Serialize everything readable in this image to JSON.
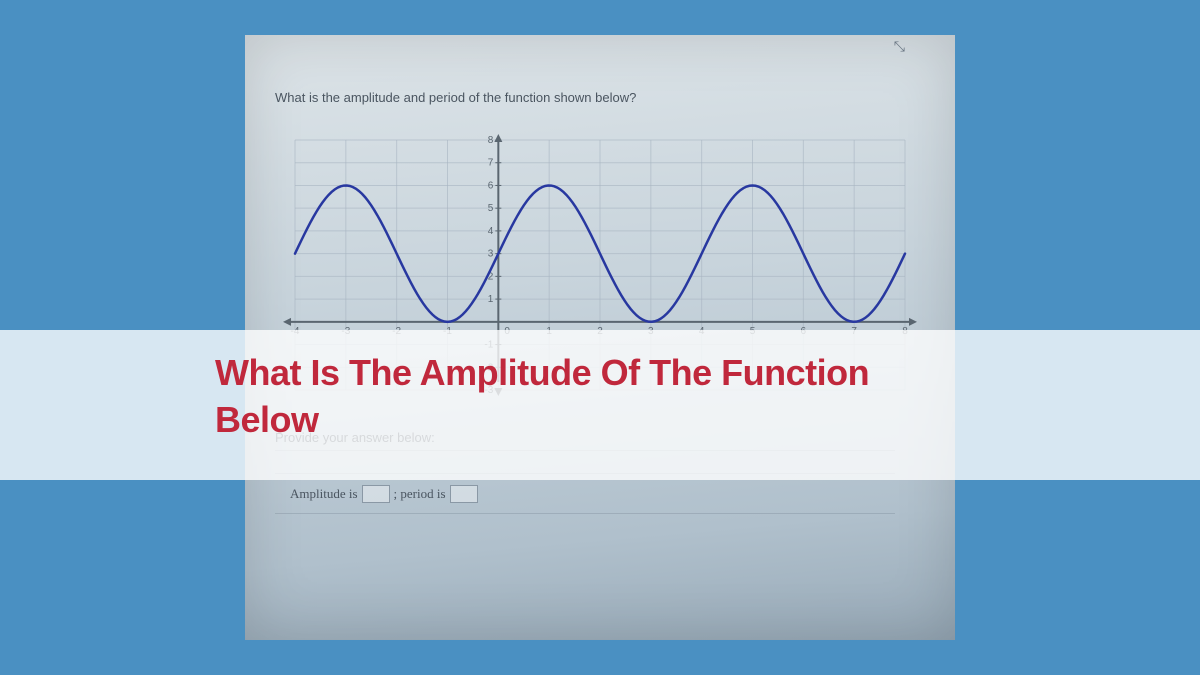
{
  "background_color": "#4a90c2",
  "photo": {
    "bg_gradient_top": "#dde4e8",
    "bg_gradient_bottom": "#98aab8"
  },
  "question": {
    "text": "What is the amplitude and period of the function shown below?"
  },
  "graph": {
    "type": "line",
    "xlim": [
      -4,
      8
    ],
    "ylim": [
      -3,
      8
    ],
    "xtick_step": 1,
    "ytick_step": 1,
    "xticks": [
      -4,
      -3,
      -2,
      -1,
      0,
      1,
      2,
      3,
      4,
      5,
      6,
      7,
      8
    ],
    "yticks": [
      -3,
      -2,
      -1,
      0,
      1,
      2,
      3,
      4,
      5,
      6,
      7,
      8
    ],
    "grid_color": "#a8b5c2",
    "grid_width": 1,
    "axis_color": "#5a6670",
    "axis_width": 2,
    "tick_label_color": "#5a6670",
    "tick_label_fontsize": 10,
    "curve": {
      "color": "#2838a0",
      "width": 2.5,
      "amplitude": 3,
      "midline": 3,
      "period": 4,
      "phase_shift": 1,
      "x_start": -4,
      "x_end": 8,
      "samples": 200
    }
  },
  "answer": {
    "prompt": "Provide your answer below:",
    "amp_label": "Amplitude is",
    "period_label": "; period is"
  },
  "overlay": {
    "line1": "What Is The Amplitude Of The Function",
    "line2": "Below",
    "band_color": "rgba(255,255,255,0.78)",
    "text_color": "#c0283c",
    "fontsize": 36
  },
  "cursor_glyph": "↗"
}
